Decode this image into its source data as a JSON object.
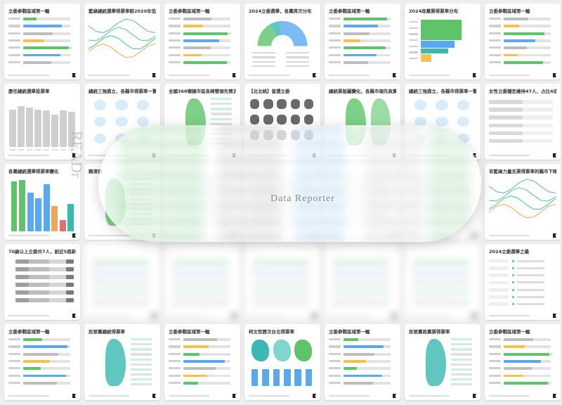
{
  "brand_watermark": "Data Reporter",
  "logo_mark": "READr",
  "colors": {
    "green": "#5ec46a",
    "blue": "#5aa9f0",
    "teal": "#3bb8b0",
    "gray": "#bdbdbd",
    "orange": "#f2a653",
    "red": "#e86a6a",
    "yellow": "#f2c14e",
    "pink": "#e975a8"
  },
  "cards": [
    {
      "title": "立委參戰區域第一輪"
    },
    {
      "title": "藍綠總統選舉得票率較2020年低"
    },
    {
      "title": "立委參戰區域第一輪"
    },
    {
      "title": "2024立委選舉，各黨席次分布"
    },
    {
      "title": "立委參戰區域第一輪"
    },
    {
      "title": "2024政黨票得票率分布"
    },
    {
      "title": "立委參戰區域第一輪"
    },
    {
      "title": "歷任總統選舉投票率"
    },
    {
      "title": "總統三強鼎立，各縣市得票率一覽？"
    },
    {
      "title": "全國368鄉鎮市區各陣營領先情況"
    },
    {
      "title": "【北北桃】當選立委"
    },
    {
      "title": "總統票版圖變化，各縣市領先政黨"
    },
    {
      "title": "總統三強鼎立，各縣市得票率一覽？"
    },
    {
      "title": "女性立委穩定維持47人，占比4成2"
    },
    {
      "title": "各黨總統選舉得票率變化"
    },
    {
      "title": "賴清德"
    },
    {
      "title": ""
    },
    {
      "title": ""
    },
    {
      "title": ""
    },
    {
      "title": ""
    },
    {
      "title": "非藍綠力量支票得票率的縣市下降"
    },
    {
      "title": "70歲以上立委共7人，創近5屆新高"
    },
    {
      "title": ""
    },
    {
      "title": ""
    },
    {
      "title": ""
    },
    {
      "title": ""
    },
    {
      "title": ""
    },
    {
      "title": "2024立委選舉之最"
    },
    {
      "title": "立委參戰區域第一輪"
    },
    {
      "title": "民眾黨總統得票率"
    },
    {
      "title": "立委參戰區域第一輪"
    },
    {
      "title": "柯文哲歷次台北得票率"
    },
    {
      "title": "立委參戰區域第一輪"
    },
    {
      "title": "民眾黨政黨票得票率"
    },
    {
      "title": "立委參戰區域第一輪"
    }
  ],
  "chart_data": {
    "type": "bar",
    "title": "歷任總統選舉投票率",
    "categories": [
      "1996",
      "2000",
      "2004",
      "2008",
      "2012",
      "2016",
      "2020",
      "2024"
    ],
    "values": [
      76,
      83,
      80,
      76,
      74,
      66,
      75,
      72
    ],
    "ylim": [
      0,
      100
    ]
  }
}
